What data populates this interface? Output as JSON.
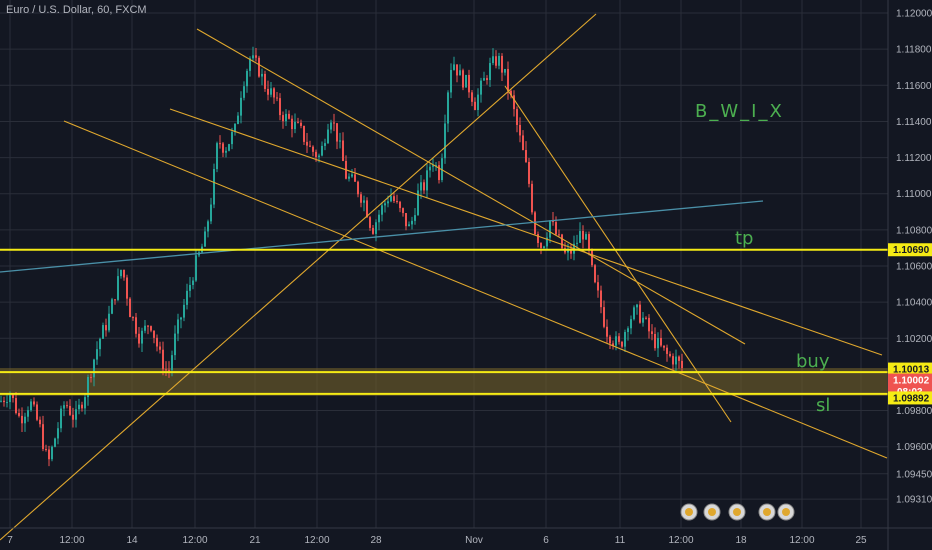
{
  "header": {
    "title": "Euro / U.S. Dollar, 60, FXCM"
  },
  "colors": {
    "background": "#131722",
    "grid": "#2a2e39",
    "bull": "#26a69a",
    "bear": "#ef5350",
    "trendline": "#e0a82e",
    "hline": "#f5eb15",
    "zone": "#6b5a2a",
    "regression": "#4a90a8",
    "annotation": "#4caf50",
    "axis_text": "#b2b5be"
  },
  "chart_data": {
    "type": "candlestick",
    "symbol": "EURUSD",
    "interval": "60",
    "ylim": [
      1.0915,
      1.1205
    ],
    "y_ticks": [
      {
        "value": 1.12,
        "label": "1.12000"
      },
      {
        "value": 1.118,
        "label": "1.11800"
      },
      {
        "value": 1.116,
        "label": "1.11600"
      },
      {
        "value": 1.114,
        "label": "1.11400"
      },
      {
        "value": 1.112,
        "label": "1.11200"
      },
      {
        "value": 1.11,
        "label": "1.11000"
      },
      {
        "value": 1.108,
        "label": "1.10800"
      },
      {
        "value": 1.106,
        "label": "1.10600"
      },
      {
        "value": 1.104,
        "label": "1.10400"
      },
      {
        "value": 1.102,
        "label": "1.10200"
      },
      {
        "value": 1.098,
        "label": "1.09800"
      },
      {
        "value": 1.096,
        "label": "1.09600"
      },
      {
        "value": 1.0945,
        "label": "1.09450"
      },
      {
        "value": 1.0931,
        "label": "1.09310"
      }
    ],
    "x_ticks": [
      "7",
      "12:00",
      "14",
      "12:00",
      "21",
      "12:00",
      "28",
      "Nov",
      "6",
      "11",
      "12:00",
      "18",
      "12:00",
      "25"
    ],
    "key_levels": [
      {
        "name": "tp",
        "value": 1.1069,
        "label": "1.10690"
      },
      {
        "name": "buy",
        "value": 1.10013,
        "label": "1.10013"
      },
      {
        "name": "current",
        "value": 1.10002,
        "label": "1.10002",
        "countdown": "08:03"
      },
      {
        "name": "sl",
        "value": 1.09892,
        "label": "1.09892"
      }
    ],
    "price_path": [
      [
        0,
        1.0985
      ],
      [
        10,
        1.099
      ],
      [
        20,
        1.0975
      ],
      [
        30,
        1.0985
      ],
      [
        40,
        1.097
      ],
      [
        48,
        1.095
      ],
      [
        55,
        1.0965
      ],
      [
        65,
        1.0985
      ],
      [
        75,
        1.0975
      ],
      [
        85,
        1.099
      ],
      [
        92,
        1.1005
      ],
      [
        100,
        1.102
      ],
      [
        108,
        1.103
      ],
      [
        115,
        1.1045
      ],
      [
        122,
        1.106
      ],
      [
        130,
        1.1035
      ],
      [
        140,
        1.102
      ],
      [
        150,
        1.103
      ],
      [
        160,
        1.101
      ],
      [
        168,
        1.1
      ],
      [
        175,
        1.102
      ],
      [
        185,
        1.104
      ],
      [
        195,
        1.106
      ],
      [
        205,
        1.1075
      ],
      [
        212,
        1.11
      ],
      [
        218,
        1.113
      ],
      [
        225,
        1.1125
      ],
      [
        235,
        1.1135
      ],
      [
        242,
        1.116
      ],
      [
        250,
        1.1175
      ],
      [
        258,
        1.117
      ],
      [
        265,
        1.116
      ],
      [
        272,
        1.1155
      ],
      [
        280,
        1.1145
      ],
      [
        290,
        1.114
      ],
      [
        300,
        1.1135
      ],
      [
        310,
        1.1125
      ],
      [
        320,
        1.112
      ],
      [
        330,
        1.1145
      ],
      [
        338,
        1.113
      ],
      [
        346,
        1.111
      ],
      [
        355,
        1.1105
      ],
      [
        365,
        1.1095
      ],
      [
        372,
        1.108
      ],
      [
        380,
        1.109
      ],
      [
        390,
        1.11
      ],
      [
        400,
        1.109
      ],
      [
        410,
        1.108
      ],
      [
        418,
        1.11
      ],
      [
        425,
        1.1105
      ],
      [
        432,
        1.112
      ],
      [
        440,
        1.111
      ],
      [
        446,
        1.115
      ],
      [
        452,
        1.1175
      ],
      [
        460,
        1.1165
      ],
      [
        468,
        1.116
      ],
      [
        475,
        1.115
      ],
      [
        482,
        1.116
      ],
      [
        490,
        1.117
      ],
      [
        498,
        1.1175
      ],
      [
        505,
        1.1165
      ],
      [
        512,
        1.115
      ],
      [
        520,
        1.113
      ],
      [
        528,
        1.111
      ],
      [
        535,
        1.108
      ],
      [
        542,
        1.107
      ],
      [
        550,
        1.1085
      ],
      [
        558,
        1.1075
      ],
      [
        566,
        1.1065
      ],
      [
        574,
        1.107
      ],
      [
        582,
        1.108
      ],
      [
        588,
        1.107
      ],
      [
        594,
        1.105
      ],
      [
        600,
        1.104
      ],
      [
        606,
        1.1025
      ],
      [
        612,
        1.102
      ],
      [
        620,
        1.1015
      ],
      [
        628,
        1.103
      ],
      [
        636,
        1.1035
      ],
      [
        644,
        1.103
      ],
      [
        652,
        1.102
      ],
      [
        660,
        1.1015
      ],
      [
        668,
        1.101
      ],
      [
        676,
        1.1008
      ],
      [
        684,
        1.1002
      ]
    ]
  },
  "annotations": [
    {
      "name": "brand",
      "text": "B_W_I_X"
    },
    {
      "name": "tp",
      "text": "tp"
    },
    {
      "name": "buy",
      "text": "buy"
    },
    {
      "name": "sl",
      "text": "sl"
    }
  ]
}
